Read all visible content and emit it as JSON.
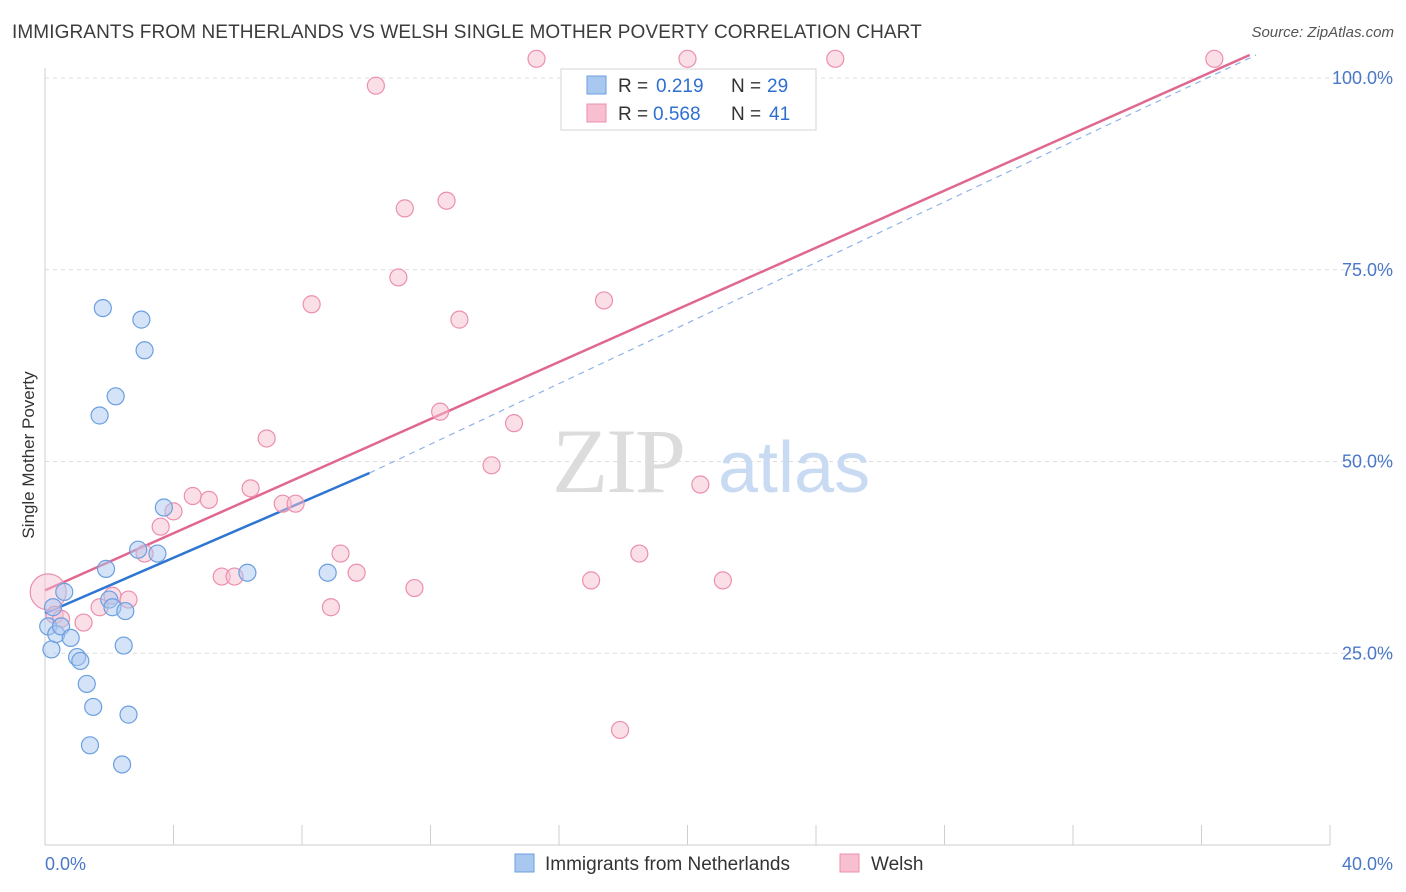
{
  "title": "IMMIGRANTS FROM NETHERLANDS VS WELSH SINGLE MOTHER POVERTY CORRELATION CHART",
  "source": "Source: ZipAtlas.com",
  "watermark": {
    "zip": "ZIP",
    "atlas": "atlas"
  },
  "colors": {
    "blue_fill": "#a9c8ef",
    "blue_stroke": "#6b9fe0",
    "blue_line": "#2f76d2",
    "pink_fill": "#f7bfd0",
    "pink_stroke": "#ec8fae",
    "pink_line": "#e0688f",
    "grid": "#dcdcdc",
    "tick_label": "#4a78c8"
  },
  "legend_top": [
    {
      "series": "Immigrants from Netherlands",
      "r_label": "R = ",
      "r_value": "0.219",
      "n_label": "N = ",
      "n_value": "29"
    },
    {
      "series": "Welsh",
      "r_label": "R = ",
      "r_value": "0.568",
      "n_label": "N = ",
      "n_value": "41"
    }
  ],
  "chart_data": {
    "type": "scatter",
    "title": "IMMIGRANTS FROM NETHERLANDS VS WELSH SINGLE MOTHER POVERTY CORRELATION CHART",
    "xlabel": "",
    "ylabel": "Single Mother Poverty",
    "xlim": [
      0,
      40
    ],
    "ylim": [
      0,
      100
    ],
    "x_tick_labels": [
      "0.0%",
      "40.0%"
    ],
    "y_ticks": [
      25,
      50,
      75,
      100
    ],
    "y_tick_labels": [
      "25.0%",
      "50.0%",
      "75.0%",
      "100.0%"
    ],
    "grid": true,
    "legend_position": "top-center",
    "series": [
      {
        "name": "Immigrants from Netherlands",
        "color": "#6b9fe0",
        "points": [
          [
            0.1,
            28.5
          ],
          [
            0.2,
            25.5
          ],
          [
            0.35,
            27.5
          ],
          [
            0.5,
            28.5
          ],
          [
            0.6,
            33
          ],
          [
            0.8,
            27
          ],
          [
            1.0,
            24.5
          ],
          [
            1.1,
            24
          ],
          [
            1.3,
            21
          ],
          [
            1.4,
            13
          ],
          [
            1.5,
            18
          ],
          [
            1.7,
            56
          ],
          [
            1.8,
            70
          ],
          [
            1.9,
            36
          ],
          [
            2.0,
            32
          ],
          [
            2.1,
            31
          ],
          [
            2.2,
            58.5
          ],
          [
            2.4,
            10.5
          ],
          [
            2.45,
            26
          ],
          [
            2.5,
            30.5
          ],
          [
            2.6,
            17
          ],
          [
            2.9,
            38.5
          ],
          [
            3.0,
            68.5
          ],
          [
            3.1,
            64.5
          ],
          [
            3.7,
            44
          ],
          [
            6.3,
            35.5
          ],
          [
            8.8,
            35.5
          ],
          [
            3.5,
            38
          ],
          [
            0.25,
            31
          ]
        ],
        "trend": {
          "x": [
            0,
            10.1
          ],
          "y": [
            30.2,
            48.5
          ]
        }
      },
      {
        "name": "Welsh",
        "color": "#ec8fae",
        "points": [
          [
            0.1,
            33
          ],
          [
            0.3,
            30
          ],
          [
            0.5,
            29.5
          ],
          [
            1.2,
            29
          ],
          [
            1.7,
            31
          ],
          [
            2.1,
            32.5
          ],
          [
            2.6,
            32
          ],
          [
            3.1,
            38
          ],
          [
            3.6,
            41.5
          ],
          [
            4.0,
            43.5
          ],
          [
            4.6,
            45.5
          ],
          [
            5.1,
            45
          ],
          [
            5.5,
            35
          ],
          [
            5.9,
            35
          ],
          [
            6.4,
            46.5
          ],
          [
            6.9,
            53
          ],
          [
            7.4,
            44.5
          ],
          [
            7.8,
            44.5
          ],
          [
            8.3,
            70.5
          ],
          [
            8.9,
            31
          ],
          [
            9.2,
            38
          ],
          [
            9.7,
            35.5
          ],
          [
            10.3,
            99
          ],
          [
            11.0,
            74
          ],
          [
            11.2,
            83
          ],
          [
            11.5,
            33.5
          ],
          [
            12.3,
            56.5
          ],
          [
            12.5,
            84
          ],
          [
            12.9,
            68.5
          ],
          [
            13.9,
            49.5
          ],
          [
            14.6,
            55
          ],
          [
            15.3,
            102.5
          ],
          [
            17.0,
            34.5
          ],
          [
            17.4,
            71
          ],
          [
            17.9,
            15
          ],
          [
            18.5,
            38
          ],
          [
            20.4,
            47
          ],
          [
            21.1,
            34.5
          ],
          [
            24.6,
            102.5
          ],
          [
            36.4,
            102.5
          ],
          [
            20.0,
            102.5
          ]
        ],
        "trend": {
          "x": [
            0,
            37.5
          ],
          "y": [
            33.2,
            103
          ]
        }
      }
    ],
    "dashed_extension": {
      "x": [
        10.1,
        37.7
      ],
      "y": [
        48.5,
        103
      ]
    }
  }
}
